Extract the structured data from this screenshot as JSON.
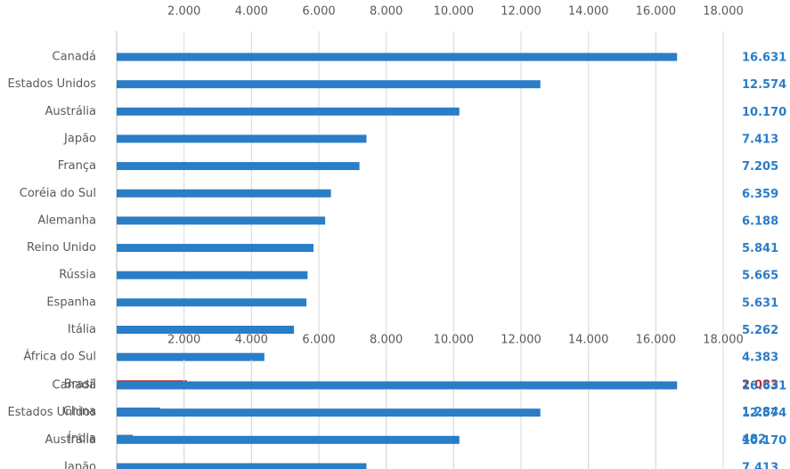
{
  "chart_data": {
    "type": "bar",
    "orientation": "horizontal",
    "categories": [
      "Canadá",
      "Estados Unidos",
      "Austrália",
      "Japão",
      "França",
      "Coréia do Sul",
      "Alemanha",
      "Reino Unido",
      "Rússia",
      "Espanha",
      "Itália",
      "África do Sul",
      "Brasil",
      "China",
      "Índia"
    ],
    "values": [
      16631,
      12574,
      10170,
      7413,
      7205,
      6359,
      6188,
      5841,
      5665,
      5631,
      5262,
      4383,
      2083,
      1284,
      482
    ],
    "value_labels": [
      "16.631",
      "12.574",
      "10.170",
      "7.413",
      "7.205",
      "6.359",
      "6.188",
      "5.841",
      "5.665",
      "5.631",
      "5.262",
      "4.383",
      "2.083",
      "1.284",
      "482"
    ],
    "colors": [
      "#2a7dc7",
      "#2a7dc7",
      "#2a7dc7",
      "#2a7dc7",
      "#2a7dc7",
      "#2a7dc7",
      "#2a7dc7",
      "#2a7dc7",
      "#2a7dc7",
      "#2a7dc7",
      "#2a7dc7",
      "#2a7dc7",
      "#c0282d",
      "#2a7dc7",
      "#2a7dc7"
    ],
    "xlim": [
      0,
      18000
    ],
    "xticks": [
      {
        "value": 2000,
        "label": "2.000"
      },
      {
        "value": 4000,
        "label": "4.000"
      },
      {
        "value": 6000,
        "label": "6.000"
      },
      {
        "value": 8000,
        "label": "8.000"
      },
      {
        "value": 10000,
        "label": "10.000"
      },
      {
        "value": 12000,
        "label": "12.000"
      },
      {
        "value": 14000,
        "label": "14.000"
      },
      {
        "value": 16000,
        "label": "16.000"
      },
      {
        "value": 18000,
        "label": "18.000"
      }
    ],
    "grid": true
  }
}
